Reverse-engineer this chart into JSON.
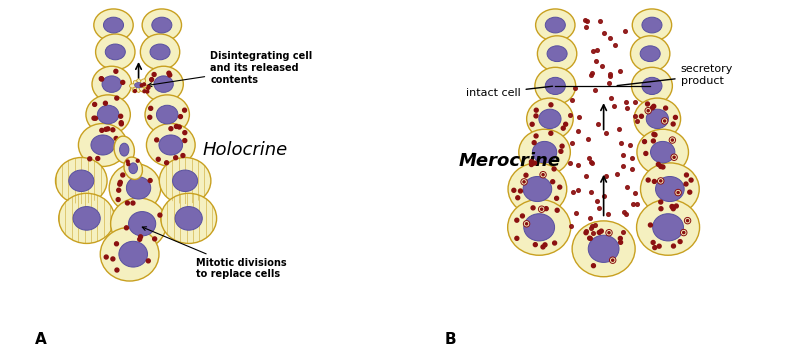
{
  "bg_left": "#f2d5df",
  "bg_right": "#cde8f0",
  "cell_fill": "#f5f0c0",
  "cell_edge": "#c8a020",
  "nucleus_fill": "#7868b0",
  "nucleus_edge": "#5850a0",
  "granule_color": "#8b1010",
  "title_left": "Holocrine",
  "title_right": "Merocrine",
  "label_A": "A",
  "label_B": "B",
  "ann_disint": "Disintegrating cell\nand its released\ncontents",
  "ann_mitotic": "Mitotic divisions\nto replace cells",
  "ann_intact": "intact cell",
  "ann_secretory": "secretory\nproduct",
  "text_color": "#000000",
  "arrow_color": "#000000"
}
